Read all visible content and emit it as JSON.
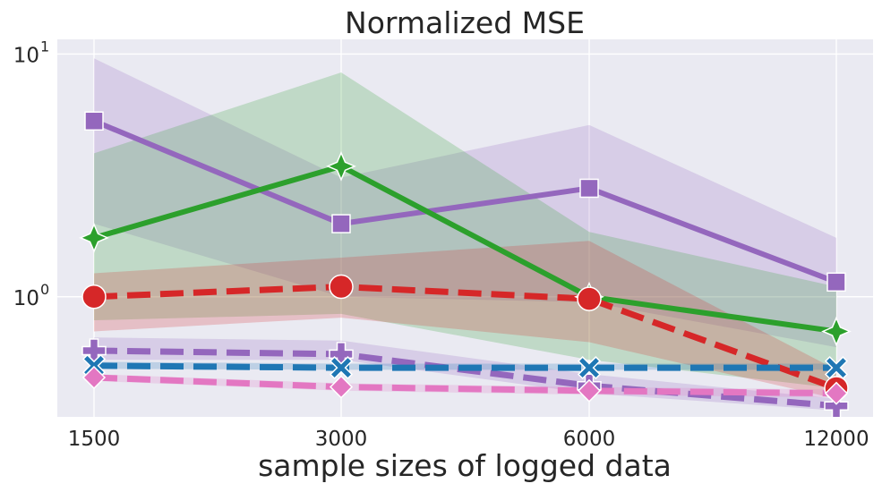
{
  "chart_data": {
    "type": "line",
    "title": "Normalized MSE",
    "xlabel": "sample sizes of logged data",
    "ylabel": "",
    "x": [
      1500,
      3000,
      6000,
      12000
    ],
    "x_tick_labels": [
      "1500",
      "3000",
      "6000",
      "12000"
    ],
    "y_scale": "log",
    "ylim": [
      0.32,
      11.5
    ],
    "y_ticks": [
      {
        "value": 1,
        "base": "10",
        "exp": "0"
      },
      {
        "value": 10,
        "base": "10",
        "exp": "1"
      }
    ],
    "grid": true,
    "legend": "none",
    "series": [
      {
        "color": "#9467bd",
        "marker": "square",
        "dash": "solid",
        "values": [
          5.3,
          2.0,
          2.8,
          1.15
        ],
        "band": {
          "lower": [
            2.0,
            1.0,
            0.95,
            0.62
          ],
          "upper": [
            9.6,
            3.1,
            5.1,
            1.75
          ]
        }
      },
      {
        "color": "#2ca02c",
        "marker": "star4",
        "dash": "solid",
        "values": [
          1.75,
          3.45,
          1.0,
          0.72
        ],
        "band": {
          "lower": [
            0.8,
            0.85,
            0.55,
            0.42
          ],
          "upper": [
            3.9,
            8.4,
            1.85,
            1.1
          ]
        }
      },
      {
        "color": "#d62728",
        "marker": "circle",
        "dash": "dashed",
        "values": [
          1.0,
          1.1,
          0.98,
          0.42
        ],
        "band": {
          "lower": [
            0.72,
            0.82,
            0.65,
            0.38
          ],
          "upper": [
            1.25,
            1.45,
            1.7,
            0.5
          ]
        }
      },
      {
        "color": "#9467bd",
        "marker": "plus",
        "dash": "dashed",
        "values": [
          0.6,
          0.58,
          0.43,
          0.355
        ],
        "band": {
          "lower": [
            0.55,
            0.55,
            0.4,
            0.34
          ],
          "upper": [
            0.68,
            0.66,
            0.48,
            0.38
          ]
        }
      },
      {
        "color": "#1f77b4",
        "marker": "x",
        "dash": "dashed",
        "values": [
          0.52,
          0.51,
          0.51,
          0.51
        ],
        "band": {
          "lower": [
            0.505,
            0.5,
            0.5,
            0.5
          ],
          "upper": [
            0.54,
            0.53,
            0.53,
            0.53
          ]
        }
      },
      {
        "color": "#e377c2",
        "marker": "diamond",
        "dash": "dashed",
        "values": [
          0.465,
          0.425,
          0.41,
          0.4
        ],
        "band": {
          "lower": [
            0.45,
            0.41,
            0.395,
            0.385
          ],
          "upper": [
            0.48,
            0.44,
            0.425,
            0.415
          ]
        }
      }
    ]
  }
}
